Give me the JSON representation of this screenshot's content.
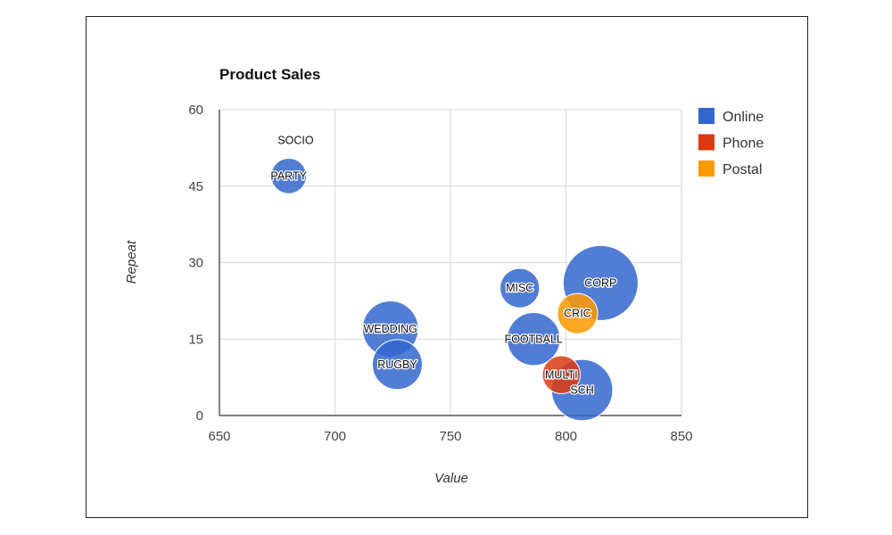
{
  "chart_data": {
    "type": "scatter",
    "subtype": "bubble",
    "title": "Product Sales",
    "xlabel": "Value",
    "ylabel": "Repeat",
    "xlim": [
      650,
      850
    ],
    "ylim": [
      0,
      60
    ],
    "x_ticks": [
      650,
      700,
      750,
      800,
      850
    ],
    "y_ticks": [
      0,
      15,
      30,
      45,
      60
    ],
    "grid": true,
    "legend_position": "right",
    "series": [
      {
        "name": "Online",
        "color": "#3366CC",
        "points": [
          {
            "label": "SOCIO",
            "x": 683,
            "y": 54,
            "size": 0
          },
          {
            "label": "PARTY",
            "x": 680,
            "y": 47,
            "size": 2
          },
          {
            "label": "WEDDING",
            "x": 724,
            "y": 17,
            "size": 5
          },
          {
            "label": "RUGBY",
            "x": 727,
            "y": 10,
            "size": 4
          },
          {
            "label": "MISC",
            "x": 780,
            "y": 25,
            "size": 2.5
          },
          {
            "label": "FOOTBALL",
            "x": 786,
            "y": 15,
            "size": 4.5
          },
          {
            "label": "CORP",
            "x": 815,
            "y": 26,
            "size": 9
          },
          {
            "label": "SCH",
            "x": 807,
            "y": 5,
            "size": 6
          }
        ]
      },
      {
        "name": "Phone",
        "color": "#DC3912",
        "points": [
          {
            "label": "MULTI",
            "x": 798,
            "y": 8,
            "size": 2.3
          }
        ]
      },
      {
        "name": "Postal",
        "color": "#FF9900",
        "points": [
          {
            "label": "CRIC",
            "x": 805,
            "y": 20,
            "size": 2.6
          }
        ]
      }
    ]
  }
}
